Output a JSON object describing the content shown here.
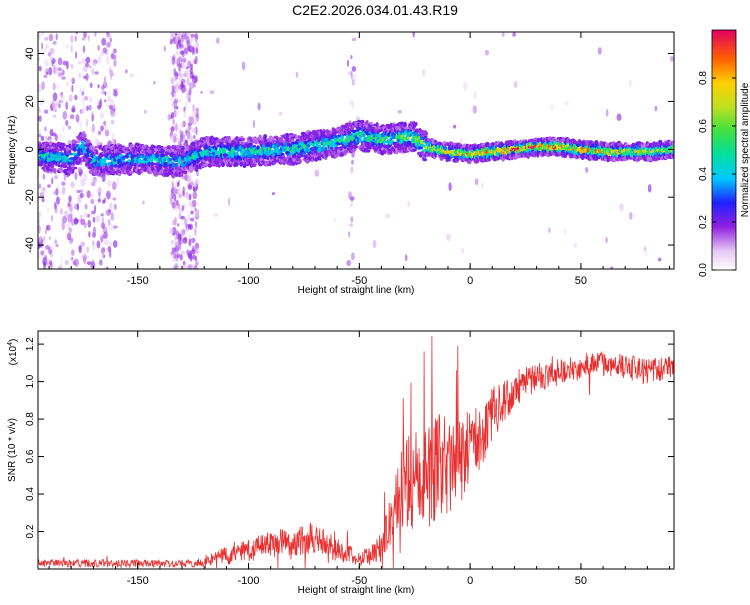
{
  "title": "C2E2.2026.034.01.43.R19",
  "colorbar": {
    "label": "Normalized spectral amplitude",
    "ticks": [
      "0.0",
      "0.2",
      "0.4",
      "0.6",
      "0.8"
    ],
    "tick_values": [
      0.0,
      0.2,
      0.4,
      0.6,
      0.8
    ],
    "range": [
      0,
      1
    ]
  },
  "colors": {
    "snr_line": "#e83030",
    "frame": "#000000"
  },
  "chart_data": [
    {
      "type": "heatmap",
      "name": "spectrogram",
      "xlabel": "Height of straight line (km)",
      "ylabel": "Frequency (Hz)",
      "xlim": [
        -195,
        92
      ],
      "ylim": [
        -50,
        49
      ],
      "xticks": [
        -150,
        -100,
        -50,
        0,
        50
      ],
      "xtick_labels": [
        "-150",
        "-100",
        "-50",
        "0",
        "50"
      ],
      "yticks": [
        -40,
        -20,
        0,
        20,
        40
      ],
      "ytick_labels": [
        "-40",
        "-20",
        "0",
        "20",
        "40"
      ],
      "band_center_hz": [
        [
          -195,
          -3
        ],
        [
          -180,
          -4
        ],
        [
          -175,
          2
        ],
        [
          -170,
          -5
        ],
        [
          -150,
          -4
        ],
        [
          -130,
          -5
        ],
        [
          -120,
          -1
        ],
        [
          -100,
          -1
        ],
        [
          -80,
          0
        ],
        [
          -60,
          3
        ],
        [
          -50,
          6
        ],
        [
          -40,
          4
        ],
        [
          -30,
          5
        ],
        [
          -25,
          5
        ],
        [
          -20,
          1
        ],
        [
          -10,
          -1
        ],
        [
          0,
          -2
        ],
        [
          10,
          -1
        ],
        [
          20,
          0
        ],
        [
          30,
          1
        ],
        [
          40,
          1
        ],
        [
          50,
          0
        ],
        [
          60,
          -1
        ],
        [
          70,
          -1
        ],
        [
          80,
          -1
        ],
        [
          92,
          0
        ]
      ],
      "peak_amplitude_by_height": [
        [
          -195,
          0.5
        ],
        [
          -150,
          0.45
        ],
        [
          -120,
          0.5
        ],
        [
          -100,
          0.55
        ],
        [
          -60,
          0.55
        ],
        [
          -30,
          0.6
        ],
        [
          -20,
          0.75
        ],
        [
          0,
          0.85
        ],
        [
          20,
          1.0
        ],
        [
          50,
          0.9
        ],
        [
          92,
          0.7
        ]
      ],
      "noise_scatter_regions": [
        [
          -195,
          -160
        ],
        [
          -135,
          -123
        ],
        [
          -55,
          -52
        ]
      ]
    },
    {
      "type": "line",
      "name": "snr",
      "xlabel": "Height of straight line (km)",
      "ylabel": "SNR (10 * v/v)",
      "y_multiplier_label": "(x10",
      "y_multiplier_exp": "4",
      "y_multiplier_close": ")",
      "xlim": [
        -195,
        92
      ],
      "ylim": [
        0,
        1.27
      ],
      "xticks": [
        -150,
        -100,
        -50,
        0,
        50
      ],
      "xtick_labels": [
        "-150",
        "-100",
        "-50",
        "0",
        "50"
      ],
      "yticks": [
        0.2,
        0.4,
        0.6,
        0.8,
        1.0,
        1.2
      ],
      "ytick_labels": [
        "0.2",
        "0.4",
        "0.6",
        "0.8",
        "1.0",
        "1.2"
      ],
      "series": [
        {
          "name": "SNR",
          "envelope_x": [
            -195,
            -170,
            -125,
            -110,
            -90,
            -70,
            -60,
            -50,
            -45,
            -40,
            -35,
            -30,
            -25,
            -20,
            -15,
            -10,
            -5,
            0,
            5,
            10,
            15,
            20,
            25,
            30,
            40,
            50,
            60,
            70,
            80,
            92
          ],
          "envelope_mean": [
            0.03,
            0.03,
            0.03,
            0.07,
            0.13,
            0.17,
            0.1,
            0.06,
            0.07,
            0.12,
            0.3,
            0.45,
            0.5,
            0.5,
            0.55,
            0.55,
            0.58,
            0.65,
            0.72,
            0.82,
            0.9,
            0.95,
            1.0,
            1.02,
            1.05,
            1.08,
            1.1,
            1.08,
            1.05,
            1.08
          ],
          "envelope_spread": [
            0.02,
            0.02,
            0.02,
            0.05,
            0.07,
            0.09,
            0.06,
            0.04,
            0.05,
            0.08,
            0.15,
            0.22,
            0.3,
            0.3,
            0.28,
            0.28,
            0.25,
            0.2,
            0.18,
            0.15,
            0.12,
            0.1,
            0.09,
            0.08,
            0.07,
            0.07,
            0.07,
            0.07,
            0.07,
            0.06
          ]
        }
      ]
    }
  ]
}
